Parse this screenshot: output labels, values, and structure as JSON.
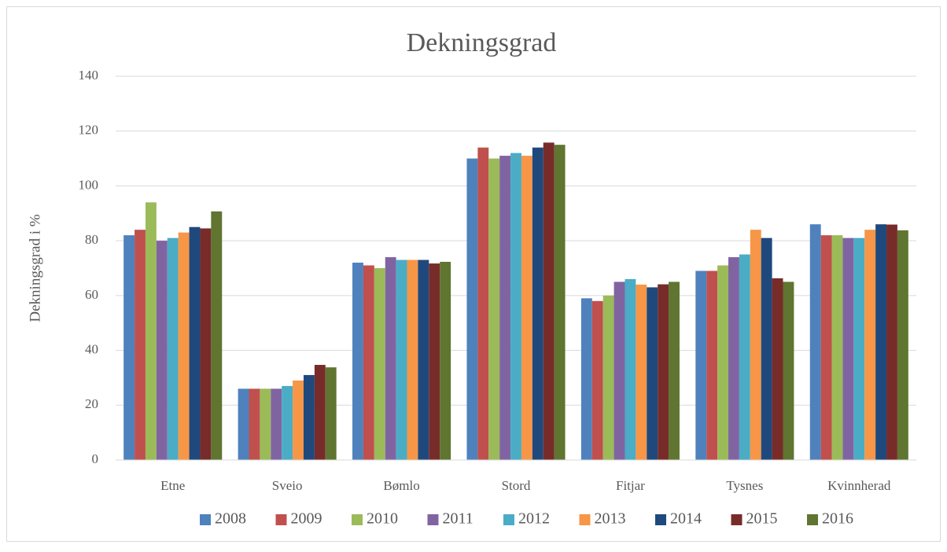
{
  "chart_data": {
    "type": "bar",
    "title": "Dekningsgrad",
    "y_label": "Dekningsgrad i %",
    "categories": [
      "Etne",
      "Sveio",
      "Bømlo",
      "Stord",
      "Fitjar",
      "Tysnes",
      "Kvinnherad"
    ],
    "series": [
      {
        "name": "2008",
        "color": "#4f81bd",
        "values": [
          82,
          26,
          72,
          110,
          59,
          69,
          86
        ]
      },
      {
        "name": "2009",
        "color": "#c0504d",
        "values": [
          84,
          26,
          71,
          114,
          58,
          69,
          82
        ]
      },
      {
        "name": "2010",
        "color": "#9bbb59",
        "values": [
          94,
          26,
          70,
          110,
          60,
          71,
          82
        ]
      },
      {
        "name": "2011",
        "color": "#8064a2",
        "values": [
          80,
          26,
          74,
          111,
          65,
          74,
          81
        ]
      },
      {
        "name": "2012",
        "color": "#4bacc6",
        "values": [
          81,
          27,
          73,
          112,
          66,
          75,
          81
        ]
      },
      {
        "name": "2013",
        "color": "#f79646",
        "values": [
          83,
          29,
          73,
          111,
          64,
          84,
          84
        ]
      },
      {
        "name": "2014",
        "color": "#1f497d",
        "values": [
          85,
          31,
          73,
          114,
          63,
          81,
          86
        ]
      },
      {
        "name": "2015",
        "color": "#772c2a",
        "values": [
          84.5,
          34.7,
          71.7,
          115.8,
          64.1,
          66.3,
          85.9
        ]
      },
      {
        "name": "2016",
        "color": "#5f7530",
        "values": [
          90.7,
          33.8,
          72.3,
          115,
          65,
          65,
          83.8
        ]
      }
    ],
    "ylim": [
      0,
      140
    ],
    "yticks": [
      0,
      20,
      40,
      60,
      80,
      100,
      120,
      140
    ],
    "grid": true,
    "legend": "bottom"
  }
}
